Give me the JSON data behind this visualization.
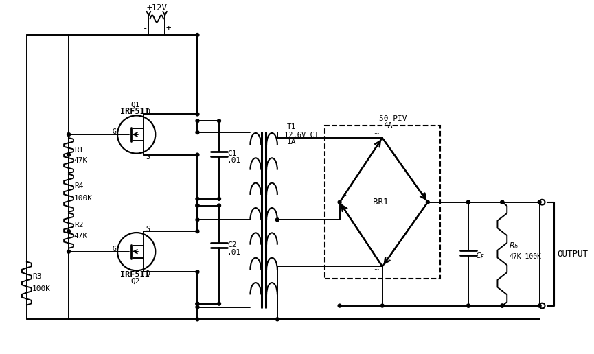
{
  "bg": "#ffffff",
  "lc": "#000000",
  "fw": 8.65,
  "fh": 5.16,
  "dpi": 100,
  "labels": {
    "v12": "+12V",
    "q1_name": "Q1",
    "q1_part": "IRF511",
    "q2_name": "Q2",
    "q2_part": "IRF511",
    "r1": "R1",
    "r1v": "47K",
    "r2": "R2",
    "r2v": "47K",
    "r3": "R3",
    "r3v": "100K",
    "r4": "R4",
    "r4v": "100K",
    "c1": "C1",
    "c1v": ".01",
    "c2": "C2",
    "c2v": ".01",
    "t1": "T1",
    "t1v1": "12.6V CT",
    "t1v2": "1A",
    "br1": "BR1",
    "br_spec1": "50 PIV",
    "br_spec2": "4A",
    "cf": "$C_F$",
    "rb": "$R_b$",
    "rbv": "47K-100K",
    "output": "OUTPUT",
    "g": "G",
    "d": "D",
    "s": "S",
    "minus": "-",
    "plus": "+",
    "tilde": "~"
  }
}
